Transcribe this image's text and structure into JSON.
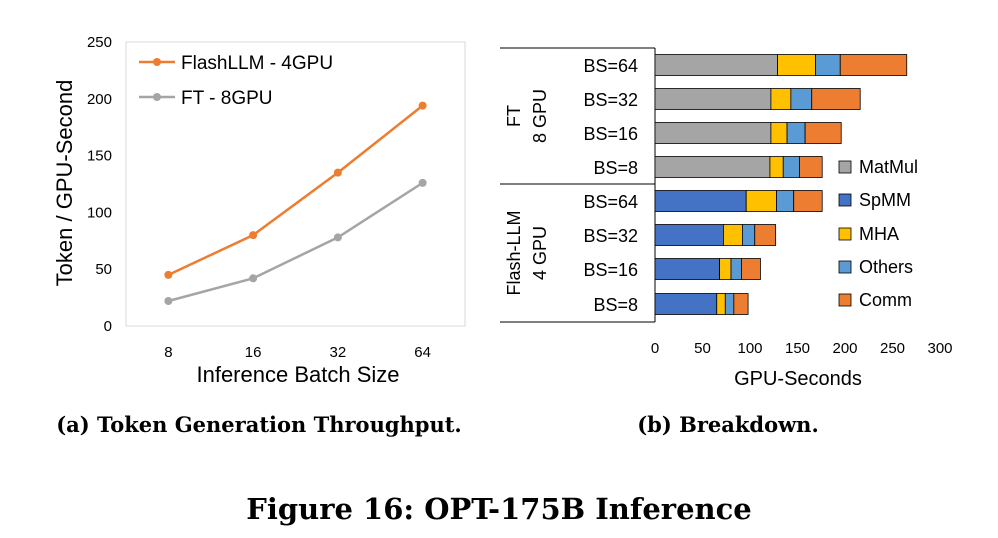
{
  "figure_title": "Figure 16: OPT-175B Inference",
  "colors": {
    "flashllm": "#ED7D31",
    "ft": "#A5A5A5",
    "matmul": "#A5A5A5",
    "spmm": "#4472C4",
    "mha": "#FFC000",
    "others": "#5B9BD5",
    "comm": "#ED7D31"
  },
  "chart_data": [
    {
      "type": "line",
      "caption": "(a) Token Generation Throughput.",
      "xlabel": "Inference Batch Size",
      "ylabel": "Token / GPU-Second",
      "categories": [
        "8",
        "16",
        "32",
        "64"
      ],
      "ylim": [
        0,
        250
      ],
      "yticks": [
        "0",
        "50",
        "100",
        "150",
        "200",
        "250"
      ],
      "grid": false,
      "legend_position": "top-left",
      "series": [
        {
          "name": "FlashLLM - 4GPU",
          "values": [
            45,
            80,
            135,
            194
          ]
        },
        {
          "name": "FT - 8GPU",
          "values": [
            22,
            42,
            78,
            126
          ]
        }
      ]
    },
    {
      "type": "bar",
      "orientation": "horizontal",
      "stacked": true,
      "caption": "(b) Breakdown.",
      "xlabel": "GPU-Seconds",
      "xlim": [
        0,
        300
      ],
      "xticks": [
        "0",
        "50",
        "100",
        "150",
        "200",
        "250",
        "300"
      ],
      "legend_position": "right",
      "segments": [
        "MatMul",
        "SpMM",
        "MHA",
        "Others",
        "Comm"
      ],
      "groups": [
        {
          "label_line1": "FT",
          "label_line2": "8 GPU",
          "rows": [
            {
              "label": "BS=64",
              "values": [
                129,
                0,
                40,
                26,
                70
              ]
            },
            {
              "label": "BS=32",
              "values": [
                122,
                0,
                21,
                22,
                51
              ]
            },
            {
              "label": "BS=16",
              "values": [
                122,
                0,
                17,
                19,
                38
              ]
            },
            {
              "label": "BS=8",
              "values": [
                121,
                0,
                14,
                17,
                24
              ]
            }
          ]
        },
        {
          "label_line1": "Flash-LLM",
          "label_line2": "4 GPU",
          "rows": [
            {
              "label": "BS=64",
              "values": [
                0,
                96,
                32,
                18,
                30
              ]
            },
            {
              "label": "BS=32",
              "values": [
                0,
                72,
                20,
                13,
                22
              ]
            },
            {
              "label": "BS=16",
              "values": [
                0,
                68,
                12,
                11,
                20
              ]
            },
            {
              "label": "BS=8",
              "values": [
                0,
                65,
                9,
                9,
                15
              ]
            }
          ]
        }
      ]
    }
  ]
}
